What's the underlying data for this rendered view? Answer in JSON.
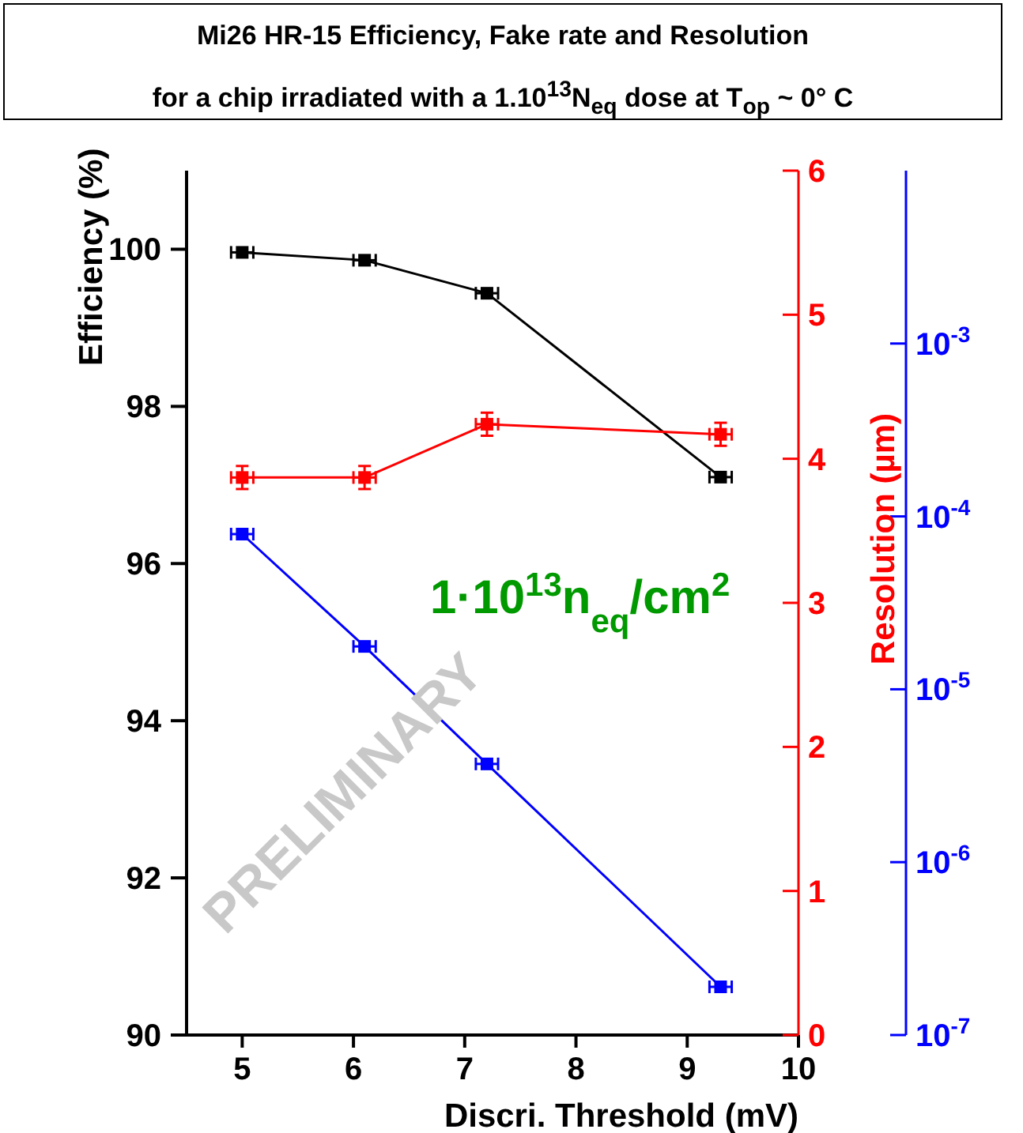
{
  "chart_data": {
    "type": "line",
    "title": "Mi26 HR-15 Efficiency, Fake rate and Resolution",
    "subtitle": "for a chip irradiated with a 1.10$^{13}$N$_{eq}$ dose at T$_{op}$ ~ 0° C",
    "xlabel": "Discri. Threshold (mV)",
    "ylabel": "Efficiency (%)",
    "y2label": "Resolution (µm)",
    "x": [
      5,
      6.1,
      7.2,
      9.3
    ],
    "series": [
      {
        "color": "#000000",
        "values": [
          99.96,
          99.86,
          99.44,
          97.1
        ],
        "xerrors": [
          0.1,
          0.1,
          0.1,
          0.1
        ]
      },
      {
        "color": "#ff0000",
        "axis": "y2",
        "values": [
          3.87,
          3.87,
          4.24,
          4.17
        ],
        "errors": [
          0.08,
          0.08,
          0.08,
          0.08
        ],
        "xerrors": [
          0.1,
          0.1,
          0.1,
          0.1
        ]
      },
      {
        "color": "#0000ff",
        "axis": "y3",
        "values": [
          7.9e-05,
          1.77e-05,
          3.7e-06,
          1.9e-07
        ],
        "xerrors": [
          0.1,
          0.1,
          0.1,
          0.1
        ]
      }
    ],
    "xlim": [
      4.5,
      10
    ],
    "xticks": [
      5,
      6,
      7,
      8,
      9,
      10
    ],
    "ylim": [
      90,
      101
    ],
    "yticks": [
      90,
      92,
      94,
      96,
      98,
      100
    ],
    "y2lim": [
      0,
      6
    ],
    "y2ticks": [
      0,
      1,
      2,
      3,
      4,
      5,
      6
    ],
    "y3lim": [
      1e-07,
      0.01
    ],
    "y3ticks": [
      {
        "value": 1e-07,
        "label": "10$^{-7}$"
      },
      {
        "value": 1e-06,
        "label": "10$^{-6}$"
      },
      {
        "value": 1e-05,
        "label": "10$^{-5}$"
      },
      {
        "value": 0.0001,
        "label": "10$^{-4}$"
      },
      {
        "value": 0.001,
        "label": "10$^{-3}$"
      }
    ],
    "log": "y3",
    "grid": false,
    "legend": false,
    "marker": "square",
    "line_style": "solid",
    "annotations": [
      "1·10$^{13}$n$_{eq}$/cm$^{2}$",
      "PRELIMINARY"
    ]
  }
}
